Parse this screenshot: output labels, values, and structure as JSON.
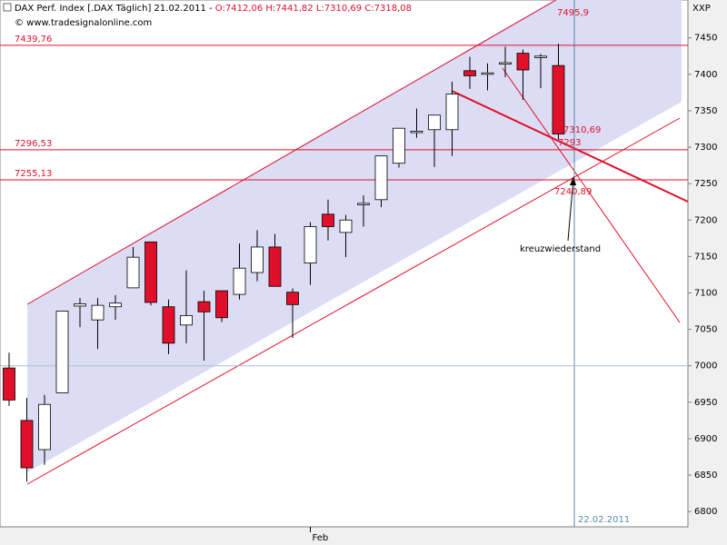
{
  "chart_data": {
    "type": "candlestick",
    "title": "DAX Perf. Index [.DAX  Täglich] 21.02.2011 -",
    "title_values": "O:7412,06 H:7441,82 L:7310,69 C:7318,08",
    "subtitle": "© www.tradesignalonline.com",
    "axis_label": "XXP",
    "categories": [
      null,
      null,
      null,
      null,
      null,
      null,
      null,
      null,
      null,
      null,
      null,
      null,
      null,
      null,
      null,
      null,
      null,
      "Feb",
      null,
      null,
      null,
      null,
      null,
      null,
      null,
      null,
      null,
      null,
      null,
      null,
      null,
      null
    ],
    "open": [
      6997,
      6925,
      6885,
      6963,
      7082,
      7063,
      7081,
      7107,
      7170,
      7081,
      7056,
      7088,
      7103,
      7098,
      7128,
      7163,
      7101,
      7141,
      7208,
      7183,
      7221,
      7228,
      7278,
      7320,
      7324,
      7324,
      7405,
      7400,
      7414,
      7429,
      7423,
      7412.06
    ],
    "high": [
      7018,
      6956,
      6960,
      7075,
      7093,
      7093,
      7097,
      7163,
      7170,
      7091,
      7131,
      7103,
      7103,
      7168,
      7186,
      7181,
      7106,
      7197,
      7228,
      7207,
      7234,
      7288,
      7326,
      7353,
      7344,
      7390,
      7424,
      7415,
      7438,
      7434,
      7428,
      7441.82
    ],
    "low": [
      6945,
      6841,
      6864,
      6963,
      7053,
      7023,
      7063,
      7107,
      7083,
      7016,
      7031,
      7007,
      7060,
      7091,
      7116,
      7109,
      7038,
      7111,
      7172,
      7149,
      7191,
      7218,
      7272,
      7313,
      7273,
      7288,
      7380,
      7378,
      7396,
      7365,
      7381,
      7310.69
    ],
    "close": [
      6953,
      6860,
      6947,
      7075,
      7085,
      7083,
      7086,
      7149,
      7087,
      7031,
      7069,
      7074,
      7066,
      7134,
      7163,
      7109,
      7084,
      7191,
      7191,
      7200,
      7223,
      7288,
      7326,
      7322,
      7344,
      7373,
      7398,
      7402,
      7416,
      7406,
      7425,
      7318.08
    ],
    "up_color": "#ffffff",
    "down_color": "#e0102a",
    "ylim": [
      6779,
      7502
    ],
    "yticks": [
      6800,
      6850,
      6900,
      6950,
      7000,
      7050,
      7100,
      7150,
      7200,
      7250,
      7300,
      7350,
      7400,
      7450
    ],
    "levels": [
      {
        "value": 7439.76,
        "label": "7439,76"
      },
      {
        "value": 7296.53,
        "label": "7296,53"
      },
      {
        "value": 7255.13,
        "label": "7255,13"
      }
    ],
    "annotations": [
      "7495,9",
      "7310,69",
      "7293",
      "7240,89",
      "kreuzwiederstand"
    ],
    "date_marker": "22.02.2011"
  }
}
